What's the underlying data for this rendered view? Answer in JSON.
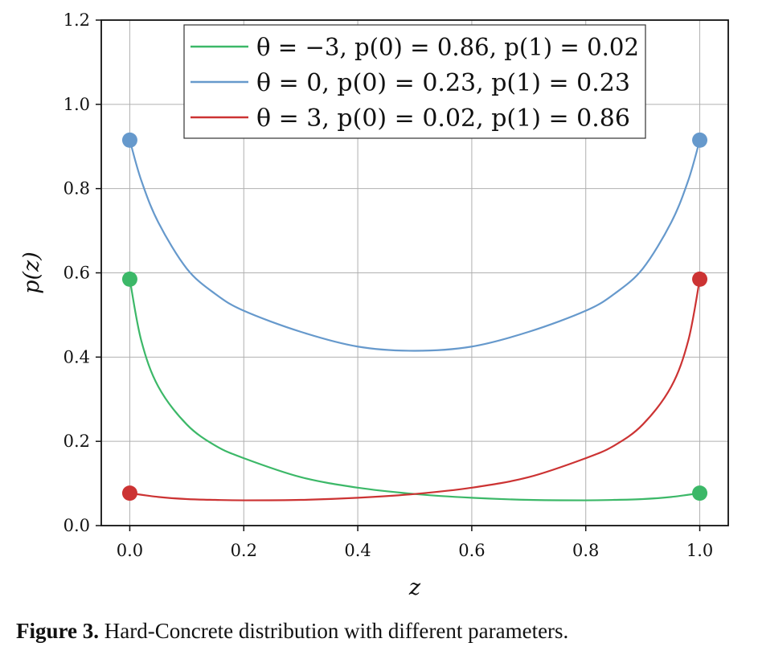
{
  "chart_data": {
    "type": "line",
    "xlabel": "z",
    "ylabel": "p(z)",
    "xlim": [
      -0.05,
      1.05
    ],
    "ylim": [
      0.0,
      1.2
    ],
    "xticks": [
      "0.0",
      "0.2",
      "0.4",
      "0.6",
      "0.8",
      "1.0"
    ],
    "yticks": [
      "0.0",
      "0.2",
      "0.4",
      "0.6",
      "0.8",
      "1.0",
      "1.2"
    ],
    "grid": true,
    "legend_position": "top-center",
    "series": [
      {
        "name": "θ = −3, p(0) = 0.86, p(1) = 0.02",
        "color": "#3cb868",
        "x": [
          0.0,
          0.02,
          0.05,
          0.1,
          0.15,
          0.2,
          0.3,
          0.4,
          0.5,
          0.6,
          0.7,
          0.8,
          0.85,
          0.9,
          0.95,
          1.0
        ],
        "y": [
          0.585,
          0.44,
          0.33,
          0.24,
          0.19,
          0.16,
          0.115,
          0.09,
          0.075,
          0.066,
          0.061,
          0.06,
          0.061,
          0.063,
          0.068,
          0.077
        ],
        "endpoints": {
          "z0": 0.585,
          "z1": 0.077
        }
      },
      {
        "name": "θ = 0, p(0) = 0.23, p(1) = 0.23",
        "color": "#6699cc",
        "x": [
          0.0,
          0.02,
          0.05,
          0.1,
          0.15,
          0.2,
          0.3,
          0.4,
          0.5,
          0.6,
          0.7,
          0.8,
          0.85,
          0.9,
          0.95,
          0.98,
          1.0
        ],
        "y": [
          0.915,
          0.82,
          0.72,
          0.61,
          0.55,
          0.51,
          0.46,
          0.425,
          0.415,
          0.425,
          0.46,
          0.51,
          0.55,
          0.61,
          0.72,
          0.82,
          0.915
        ],
        "endpoints": {
          "z0": 0.915,
          "z1": 0.915
        }
      },
      {
        "name": "θ = 3, p(0) = 0.02, p(1) = 0.86",
        "color": "#cc3333",
        "x": [
          0.0,
          0.05,
          0.1,
          0.15,
          0.2,
          0.3,
          0.4,
          0.5,
          0.6,
          0.7,
          0.8,
          0.85,
          0.9,
          0.95,
          0.98,
          1.0
        ],
        "y": [
          0.077,
          0.068,
          0.063,
          0.061,
          0.06,
          0.061,
          0.066,
          0.075,
          0.09,
          0.115,
          0.16,
          0.19,
          0.24,
          0.33,
          0.44,
          0.585
        ],
        "endpoints": {
          "z0": 0.077,
          "z1": 0.585
        }
      }
    ]
  },
  "caption": {
    "label": "Figure 3.",
    "text": " Hard-Concrete distribution with different parameters."
  }
}
